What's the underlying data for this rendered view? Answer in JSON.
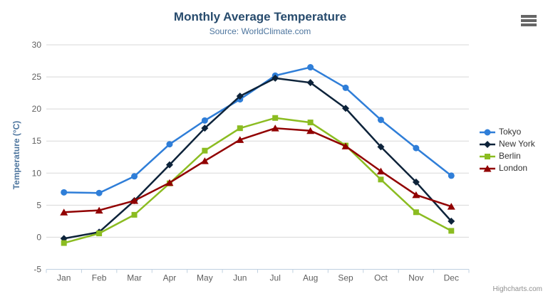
{
  "chart_data": {
    "type": "line",
    "title": "Monthly Average Temperature",
    "subtitle": "Source: WorldClimate.com",
    "ylabel": "Temperature (°C)",
    "xlabel": "",
    "ylim": [
      -5,
      30
    ],
    "ytick_interval": 5,
    "grid": true,
    "legend_position": "right",
    "credits": "Highcharts.com",
    "categories": [
      "Jan",
      "Feb",
      "Mar",
      "Apr",
      "May",
      "Jun",
      "Jul",
      "Aug",
      "Sep",
      "Oct",
      "Nov",
      "Dec"
    ],
    "series": [
      {
        "name": "Tokyo",
        "color": "#2f7ed8",
        "marker": "circle",
        "values": [
          7.0,
          6.9,
          9.5,
          14.5,
          18.2,
          21.5,
          25.2,
          26.5,
          23.3,
          18.3,
          13.9,
          9.6
        ]
      },
      {
        "name": "New York",
        "color": "#0d233a",
        "marker": "diamond",
        "values": [
          -0.2,
          0.8,
          5.7,
          11.3,
          17.0,
          22.0,
          24.8,
          24.1,
          20.1,
          14.1,
          8.6,
          2.5
        ]
      },
      {
        "name": "Berlin",
        "color": "#8bbc21",
        "marker": "square",
        "values": [
          -0.9,
          0.6,
          3.5,
          8.4,
          13.5,
          17.0,
          18.6,
          17.9,
          14.3,
          9.0,
          3.9,
          1.0
        ]
      },
      {
        "name": "London",
        "color": "#910000",
        "marker": "triangle",
        "values": [
          3.9,
          4.2,
          5.7,
          8.5,
          11.9,
          15.2,
          17.0,
          16.6,
          14.2,
          10.3,
          6.6,
          4.8
        ]
      }
    ],
    "style": {
      "title_color": "#274b6d",
      "subtitle_color": "#4d759e",
      "axis_label_color": "#606060",
      "grid_color": "#d8d8d8",
      "axis_line_color": "#c0d0e0",
      "legend_text_color": "#333333",
      "credits_color": "#909090"
    }
  }
}
